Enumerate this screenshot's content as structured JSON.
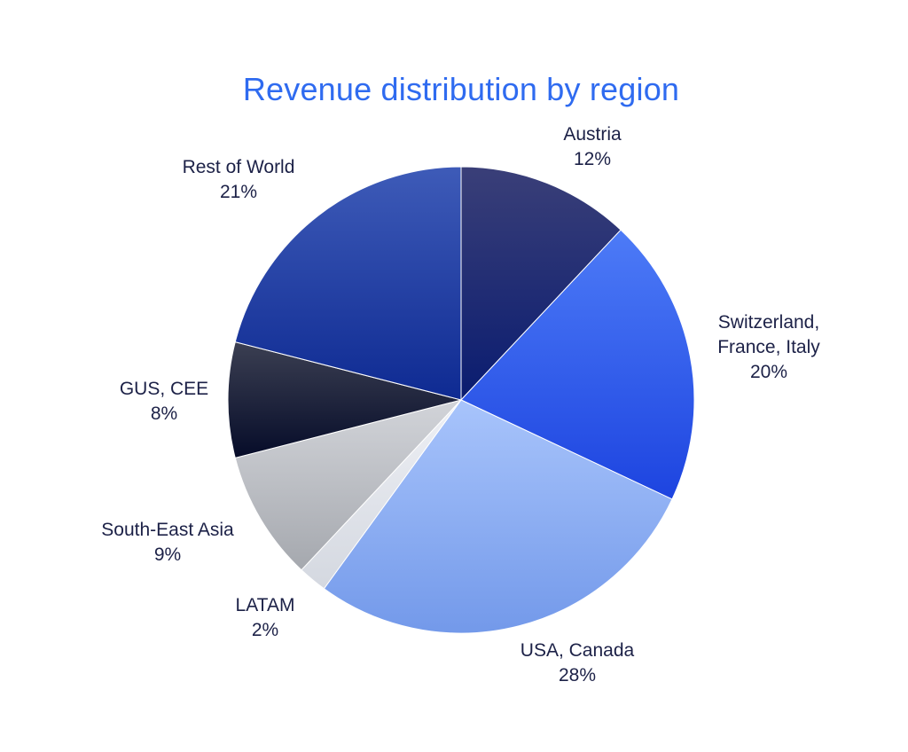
{
  "chart_data": {
    "type": "pie",
    "title": "Revenue distribution by region",
    "start_angle_deg": 0,
    "direction": "clockwise",
    "slices": [
      {
        "label": "Austria",
        "value": 12,
        "pct_label": "12%",
        "colors": [
          "#3a3f78",
          "#0a1c70"
        ]
      },
      {
        "label": "Switzerland,\nFrance, Italy",
        "value": 20,
        "pct_label": "20%",
        "colors": [
          "#4d7bf7",
          "#1d44e0"
        ]
      },
      {
        "label": "USA, Canada",
        "value": 28,
        "pct_label": "28%",
        "colors": [
          "#a8c4fb",
          "#7399ea"
        ]
      },
      {
        "label": "LATAM",
        "value": 2,
        "pct_label": "2%",
        "colors": [
          "#eef0f5",
          "#d4d8e0"
        ]
      },
      {
        "label": "South-East Asia",
        "value": 9,
        "pct_label": "9%",
        "colors": [
          "#d2d4d9",
          "#a5a8ae"
        ]
      },
      {
        "label": "GUS, CEE",
        "value": 8,
        "pct_label": "8%",
        "colors": [
          "#3b3f52",
          "#060c29"
        ]
      },
      {
        "label": "Rest of World",
        "value": 21,
        "pct_label": "21%",
        "colors": [
          "#3e5bb8",
          "#0e2a92"
        ]
      }
    ]
  }
}
